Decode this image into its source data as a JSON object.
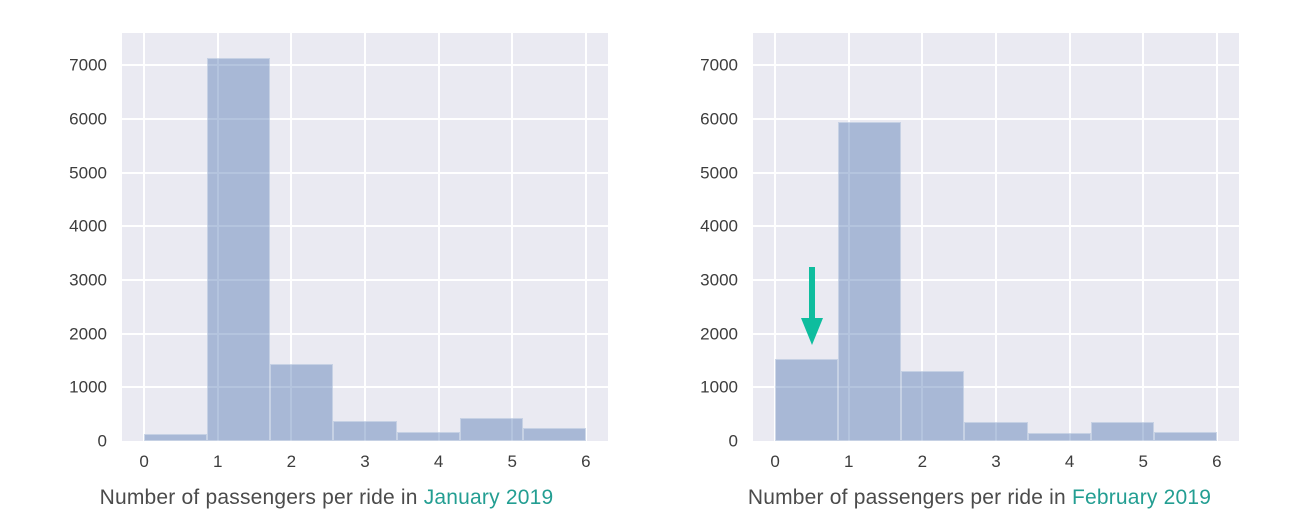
{
  "figure": {
    "background": "#FFFFFF",
    "plot_background": "#EAEAF2",
    "grid_color": "#FFFFFF",
    "tick_color": "#3D3D3D",
    "caption_color": "#4B4B4B",
    "accent_color": "#239E92",
    "bar_color": "#4C72B0",
    "bar_alpha": 0.42
  },
  "chart_data": [
    {
      "type": "bar",
      "kind": "histogram",
      "title": "Number of passengers per ride in January 2019",
      "caption": {
        "prefix": "Number of passengers per ride in ",
        "highlight": "January 2019"
      },
      "bin_edges": [
        0,
        0.857,
        1.714,
        2.571,
        3.429,
        4.286,
        5.143,
        6
      ],
      "values": [
        130,
        7130,
        1440,
        370,
        160,
        420,
        250
      ],
      "xticks": [
        "0",
        "1",
        "2",
        "3",
        "4",
        "5",
        "6"
      ],
      "xtick_values": [
        0,
        1,
        2,
        3,
        4,
        5,
        6
      ],
      "yticks": [
        "0",
        "1000",
        "2000",
        "3000",
        "4000",
        "5000",
        "6000",
        "7000"
      ],
      "ytick_values": [
        0,
        1000,
        2000,
        3000,
        4000,
        5000,
        6000,
        7000
      ],
      "xlim": [
        -0.3,
        6.3
      ],
      "ylim": [
        0,
        7600
      ],
      "grid": true,
      "legend": null,
      "xlabel": "",
      "ylabel": "",
      "annotation": null
    },
    {
      "type": "bar",
      "kind": "histogram",
      "title": "Number of passengers per ride in February 2019",
      "caption": {
        "prefix": "Number of passengers per ride in ",
        "highlight": "February 2019"
      },
      "bin_edges": [
        0,
        0.857,
        1.714,
        2.571,
        3.429,
        4.286,
        5.143,
        6
      ],
      "values": [
        1530,
        5950,
        1310,
        350,
        140,
        350,
        170
      ],
      "xticks": [
        "0",
        "1",
        "2",
        "3",
        "4",
        "5",
        "6"
      ],
      "xtick_values": [
        0,
        1,
        2,
        3,
        4,
        5,
        6
      ],
      "yticks": [
        "0",
        "1000",
        "2000",
        "3000",
        "4000",
        "5000",
        "6000",
        "7000"
      ],
      "ytick_values": [
        0,
        1000,
        2000,
        3000,
        4000,
        5000,
        6000,
        7000
      ],
      "xlim": [
        -0.3,
        6.3
      ],
      "ylim": [
        0,
        7600
      ],
      "grid": true,
      "legend": null,
      "xlabel": "",
      "ylabel": "",
      "annotation": {
        "type": "arrow-down",
        "x": 0.5,
        "y_from": 3250,
        "y_to": 1780,
        "color": "#0EBD9E"
      }
    }
  ]
}
